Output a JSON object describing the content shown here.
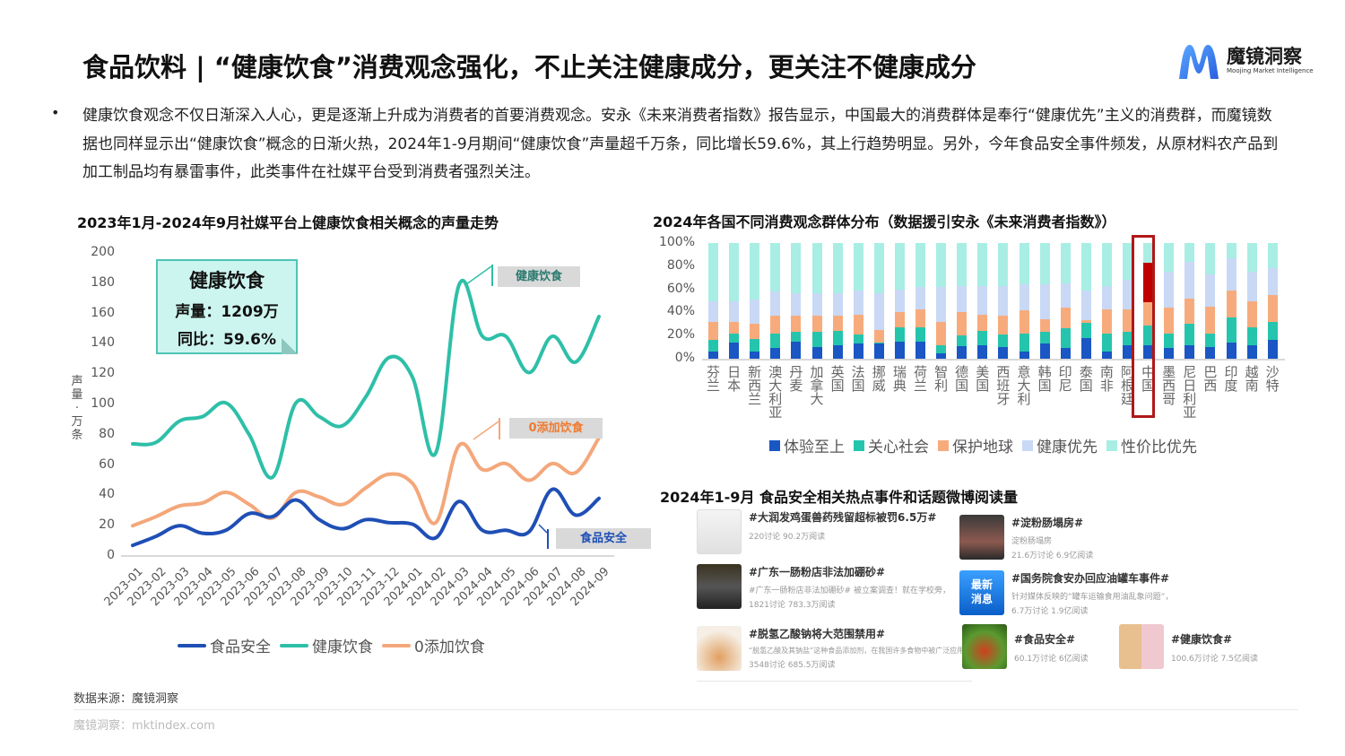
{
  "header": {
    "title": "食品饮料 | “健康饮食”消费观念强化，不止关注健康成分，更关注不健康成分",
    "logo_name": "魔镜洞察",
    "logo_sub": "Moojing Market Intelligence"
  },
  "intro": {
    "bullet": "•",
    "text": "健康饮食观念不仅日渐深入人心，更是逐渐上升成为消费者的首要消费观念。安永《未来消费者指数》报告显示，中国最大的消费群体是奉行“健康优先”主义的消费群，而魔镜数据也同样显示出“健康饮食”概念的日渐火热，2024年1-9月期间“健康饮食”声量超千万条，同比增长59.6%，其上行趋势明显。另外，今年食品安全事件频发，从原材料农产品到加工制品均有暴雷事件，此类事件在社媒平台受到消费者强烈关注。"
  },
  "callout": {
    "title": "健康饮食",
    "volume": "声量：1209万",
    "yoy": "同比：59.6%"
  },
  "tags": {
    "health": "健康饮食",
    "zero": "0添加饮食",
    "safety": "食品安全"
  },
  "ylabel_left": "声量·万条",
  "legend_right": [
    "体验至上",
    "关心社会",
    "保护地球",
    "健康优先",
    "性价比优先"
  ],
  "news_title": "2024年1-9月 食品安全相关热点事件和话题微博阅读量",
  "news": [
    {
      "title": "#大润发鸡蛋兽药残留超标被罚6.5万#",
      "desc": "",
      "stats": "220讨论 90.2万阅读"
    },
    {
      "title": "#淀粉肠塌房#",
      "desc": "淀粉肠塌房",
      "stats": "21.6万讨论 6.9亿阅读"
    },
    {
      "title": "#广东一肠粉店非法加硼砂#",
      "desc": "#广东一肠粉店非法加硼砂# 被立案调查！就在学校旁，",
      "stats": "1821讨论 783.3万阅读"
    },
    {
      "title": "#国务院食安办回应油罐车事件#",
      "desc": "针对媒体反映的“罐车运输食用油乱象问题”，",
      "stats": "6.7万讨论 1.9亿阅读"
    },
    {
      "title": "#脱氢乙酸钠将大范围禁用#",
      "desc": "“脱氢乙酸及其钠盐”这种食品添加剂，在我国许多食物中被广泛应用。",
      "stats": "3548讨论 685.5万阅读"
    },
    {
      "title": "#食品安全#",
      "desc": "",
      "stats": "60.1万讨论 6亿阅读"
    },
    {
      "title": "#健康饮食#",
      "desc": "",
      "stats": "100.6万讨论 7.5亿阅读"
    }
  ],
  "footer": {
    "source": "数据来源：魔镜洞察",
    "site": "魔镜洞察：mktindex.com"
  },
  "colors": {
    "safety": "#1f4fb5",
    "health": "#2ebfa8",
    "zero": "#f4a77a",
    "experience": "#1a56c4",
    "society": "#25c5ad",
    "planet": "#f7ab7c",
    "health_first": "#c9d8f5",
    "value": "#a8eee4",
    "highlight": "#c00000"
  },
  "chart_data": [
    {
      "type": "line",
      "title": "2023年1月-2024年9月社媒平台上健康饮食相关概念的声量走势",
      "xlabel": "",
      "ylabel": "声量·万条",
      "ylim": [
        0,
        200
      ],
      "yticks": [
        0,
        20,
        40,
        60,
        80,
        100,
        120,
        140,
        160,
        180,
        200
      ],
      "grid": false,
      "legend_position": "bottom",
      "x": [
        "2023-01",
        "2023-02",
        "2023-03",
        "2023-04",
        "2023-05",
        "2023-06",
        "2023-07",
        "2023-08",
        "2023-09",
        "2023-10",
        "2023-11",
        "2023-12",
        "2024-01",
        "2024-02",
        "2024-03",
        "2024-04",
        "2024-05",
        "2024-06",
        "2024-07",
        "2024-08",
        "2024-09"
      ],
      "series": [
        {
          "name": "食品安全",
          "values": [
            7,
            13,
            20,
            15,
            17,
            28,
            26,
            37,
            24,
            18,
            24,
            22,
            21,
            12,
            36,
            17,
            17,
            16,
            44,
            27,
            38
          ]
        },
        {
          "name": "健康饮食",
          "values": [
            74,
            75,
            89,
            92,
            101,
            80,
            52,
            101,
            92,
            86,
            105,
            131,
            118,
            68,
            179,
            145,
            145,
            121,
            145,
            128,
            158
          ]
        },
        {
          "name": "0添加饮食",
          "values": [
            20,
            26,
            33,
            35,
            42,
            34,
            25,
            42,
            39,
            34,
            45,
            54,
            48,
            22,
            73,
            57,
            61,
            50,
            61,
            55,
            78
          ]
        }
      ],
      "annotations": [
        "健康饮食 声量：1209万 同比：59.6%"
      ]
    },
    {
      "type": "bar",
      "stacked": true,
      "title": "2024年各国不同消费观念群体分布（数据援引安永《未来消费者指数》）",
      "ylim": [
        0,
        100
      ],
      "yticks": [
        "0%",
        "20%",
        "40%",
        "60%",
        "80%",
        "100%"
      ],
      "legend_position": "bottom",
      "categories": [
        "芬兰",
        "日本",
        "新西兰",
        "澳大利亚",
        "丹麦",
        "加拿大",
        "英国",
        "法国",
        "挪威",
        "瑞典",
        "荷兰",
        "智利",
        "德国",
        "美国",
        "西班牙",
        "意大利",
        "韩国",
        "印尼",
        "泰国",
        "南非",
        "阿根廷",
        "中国",
        "墨西哥",
        "尼日利亚",
        "巴西",
        "印度",
        "越南",
        "沙特"
      ],
      "series": [
        {
          "name": "体验至上",
          "values": [
            6,
            14,
            6,
            9,
            15,
            10,
            12,
            13,
            13,
            15,
            15,
            5,
            11,
            12,
            10,
            6,
            13,
            9,
            18,
            6,
            12,
            12,
            9,
            12,
            10,
            14,
            12,
            16
          ]
        },
        {
          "name": "关心社会",
          "values": [
            10,
            8,
            11,
            13,
            8,
            13,
            12,
            8,
            1,
            12,
            12,
            7,
            9,
            12,
            11,
            16,
            10,
            17,
            13,
            16,
            11,
            17,
            13,
            18,
            12,
            22,
            15,
            16
          ]
        },
        {
          "name": "保护地球",
          "values": [
            16,
            10,
            13,
            15,
            14,
            14,
            13,
            17,
            11,
            13,
            16,
            20,
            20,
            14,
            16,
            20,
            11,
            18,
            2,
            21,
            20,
            20,
            22,
            22,
            23,
            23,
            23,
            23
          ]
        },
        {
          "name": "健康优先",
          "values": [
            18,
            18,
            21,
            21,
            20,
            20,
            20,
            21,
            32,
            20,
            19,
            30,
            23,
            25,
            26,
            22,
            30,
            21,
            26,
            20,
            25,
            34,
            31,
            32,
            28,
            28,
            25,
            23
          ]
        },
        {
          "name": "性价比优先",
          "values": [
            50,
            50,
            49,
            42,
            43,
            43,
            43,
            41,
            43,
            40,
            38,
            38,
            37,
            37,
            37,
            36,
            36,
            35,
            41,
            37,
            32,
            17,
            25,
            16,
            27,
            13,
            25,
            22
          ]
        }
      ],
      "highlight": {
        "category": "中国",
        "series": "健康优先"
      }
    }
  ]
}
